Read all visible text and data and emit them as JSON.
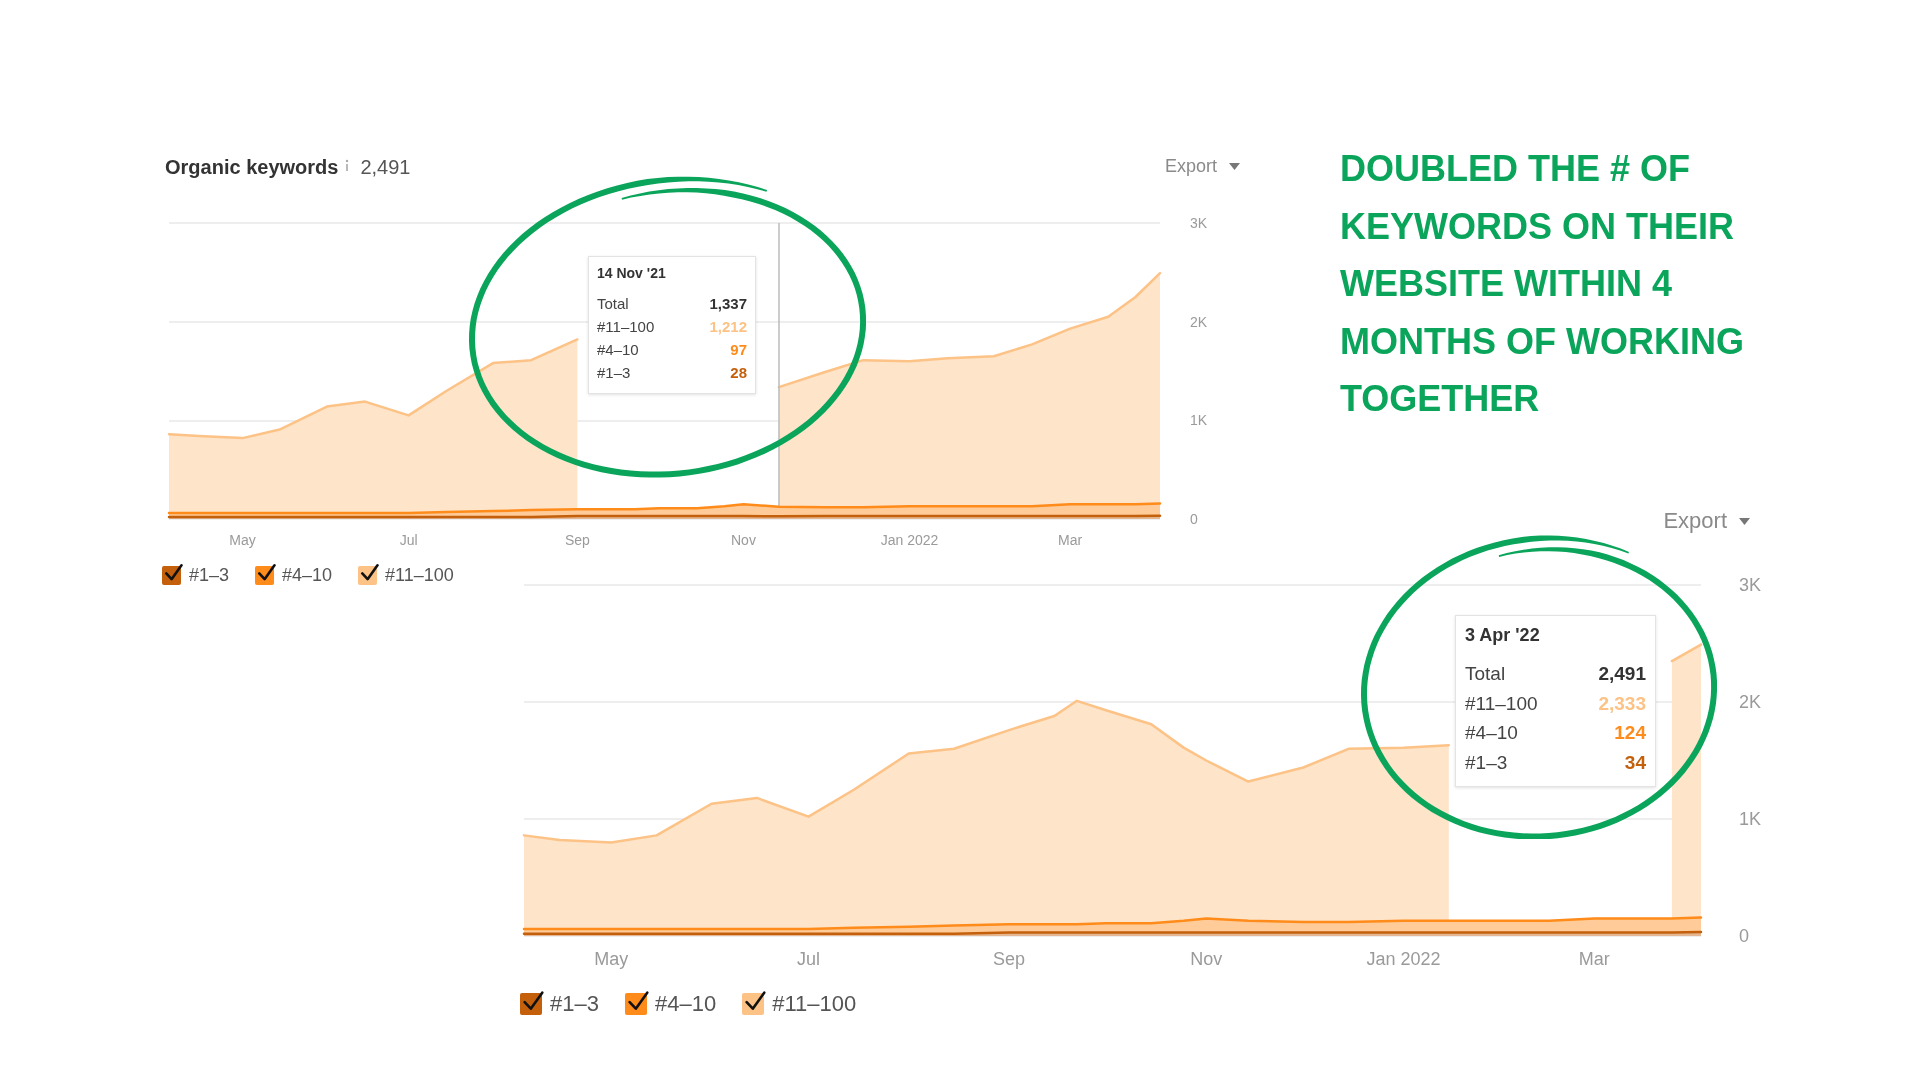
{
  "chart_data": [
    {
      "type": "area",
      "title": "Organic keywords",
      "subtitle": "2,491",
      "stacked": true,
      "grid": "y",
      "legend": "bottom left",
      "marker": "none",
      "x": [
        "2021-04-04",
        "2021-04-15",
        "2021-05-01",
        "2021-05-15",
        "2021-06-01",
        "2021-06-15",
        "2021-07-01",
        "2021-07-15",
        "2021-08-01",
        "2021-08-15",
        "2021-09-01",
        "2021-09-15",
        "2021-09-22",
        "2021-10-01",
        "2021-10-15",
        "2021-10-25",
        "2021-11-01",
        "2021-11-14",
        "2021-12-01",
        "2021-12-15",
        "2022-01-01",
        "2022-01-15",
        "2022-02-01",
        "2022-02-15",
        "2022-03-01",
        "2022-03-15",
        "2022-03-25",
        "2022-04-03"
      ],
      "xlim": [
        "2021-04-04",
        "2022-04-03"
      ],
      "xticks": [
        {
          "value": "2021-05-01",
          "label": "May"
        },
        {
          "value": "2021-07-01",
          "label": "Jul"
        },
        {
          "value": "2021-09-01",
          "label": "Sep"
        },
        {
          "value": "2021-11-01",
          "label": "Nov"
        },
        {
          "value": "2022-01-01",
          "label": "Jan 2022"
        },
        {
          "value": "2022-03-01",
          "label": "Mar"
        }
      ],
      "ylim": [
        0,
        3000
      ],
      "yticks": [
        0,
        {
          "value": 1000,
          "label": "1K"
        },
        {
          "value": 2000,
          "label": "2K"
        },
        {
          "value": 3000,
          "label": "3K"
        }
      ],
      "series": [
        {
          "name": "#1–3",
          "color": "#c4600c",
          "values": [
            20,
            20,
            20,
            20,
            20,
            20,
            20,
            20,
            20,
            20,
            30,
            30,
            30,
            30,
            30,
            30,
            30,
            28,
            30,
            30,
            30,
            30,
            30,
            30,
            30,
            30,
            30,
            34
          ]
        },
        {
          "name": "#4–10",
          "color": "#ff8b1a",
          "values": [
            40,
            40,
            40,
            40,
            40,
            40,
            40,
            50,
            60,
            70,
            70,
            70,
            70,
            80,
            80,
            100,
            120,
            97,
            90,
            90,
            100,
            100,
            100,
            100,
            120,
            120,
            120,
            124
          ]
        },
        {
          "name": "#11–100",
          "color": "#fcc286",
          "values": [
            800,
            780,
            760,
            850,
            1080,
            1130,
            990,
            1230,
            1500,
            1520,
            1720,
            null,
            null,
            null,
            null,
            null,
            null,
            1212,
            1370,
            1490,
            1470,
            1500,
            1520,
            1640,
            1780,
            1900,
            2100,
            2333
          ]
        }
      ],
      "ref_lines": [
        {
          "axis": "x",
          "value": "2021-11-14",
          "color": "#bbbbbb"
        }
      ],
      "annotations": [
        "Export",
        "14 Nov '21",
        "Total",
        "1,337",
        "#11–100",
        "1,212",
        "#4–10",
        "97",
        "#1–3",
        "28",
        "DOUBLED THE # OF KEYWORDS ON THEIR WEBSITE WITHIN 4 MONTHS OF WORKING TOGETHER"
      ]
    },
    {
      "type": "area",
      "stacked": true,
      "grid": "y",
      "legend": "bottom left",
      "marker": "none",
      "x": [
        "2021-04-04",
        "2021-04-15",
        "2021-05-01",
        "2021-05-15",
        "2021-06-01",
        "2021-06-15",
        "2021-07-01",
        "2021-07-15",
        "2021-08-01",
        "2021-08-15",
        "2021-09-01",
        "2021-09-15",
        "2021-09-22",
        "2021-10-01",
        "2021-10-15",
        "2021-10-25",
        "2021-11-01",
        "2021-11-14",
        "2021-12-01",
        "2021-12-15",
        "2022-01-01",
        "2022-01-15",
        "2022-02-01",
        "2022-02-15",
        "2022-03-01",
        "2022-03-15",
        "2022-03-25",
        "2022-04-03"
      ],
      "xlim": [
        "2021-04-04",
        "2022-04-03"
      ],
      "xticks": [
        {
          "value": "2021-05-01",
          "label": "May"
        },
        {
          "value": "2021-07-01",
          "label": "Jul"
        },
        {
          "value": "2021-09-01",
          "label": "Sep"
        },
        {
          "value": "2021-11-01",
          "label": "Nov"
        },
        {
          "value": "2022-01-01",
          "label": "Jan 2022"
        },
        {
          "value": "2022-03-01",
          "label": "Mar"
        }
      ],
      "ylim": [
        0,
        3000
      ],
      "yticks": [
        0,
        {
          "value": 1000,
          "label": "1K"
        },
        {
          "value": 2000,
          "label": "2K"
        },
        {
          "value": 3000,
          "label": "3K"
        }
      ],
      "series": [
        {
          "name": "#1–3",
          "color": "#c4600c",
          "values": [
            20,
            20,
            20,
            20,
            20,
            20,
            20,
            20,
            20,
            20,
            30,
            30,
            30,
            30,
            30,
            30,
            30,
            30,
            30,
            30,
            30,
            30,
            30,
            30,
            30,
            30,
            30,
            34
          ]
        },
        {
          "name": "#4–10",
          "color": "#ff8b1a",
          "values": [
            40,
            40,
            40,
            40,
            40,
            40,
            40,
            50,
            60,
            70,
            70,
            70,
            70,
            80,
            80,
            100,
            120,
            100,
            90,
            90,
            100,
            100,
            100,
            100,
            120,
            120,
            120,
            124
          ]
        },
        {
          "name": "#11–100",
          "color": "#fcc286",
          "values": [
            800,
            760,
            740,
            800,
            1070,
            1120,
            960,
            1180,
            1480,
            1510,
            1660,
            1780,
            1910,
            1820,
            1700,
            1480,
            1350,
            1190,
            1320,
            1480,
            1480,
            1500,
            null,
            null,
            null,
            null,
            2200,
            2333
          ]
        }
      ],
      "annotations": [
        "Export",
        "3 Apr '22",
        "Total",
        "2,491",
        "#11–100",
        "2,333",
        "#4–10",
        "124",
        "#1–3",
        "34"
      ]
    }
  ]
}
